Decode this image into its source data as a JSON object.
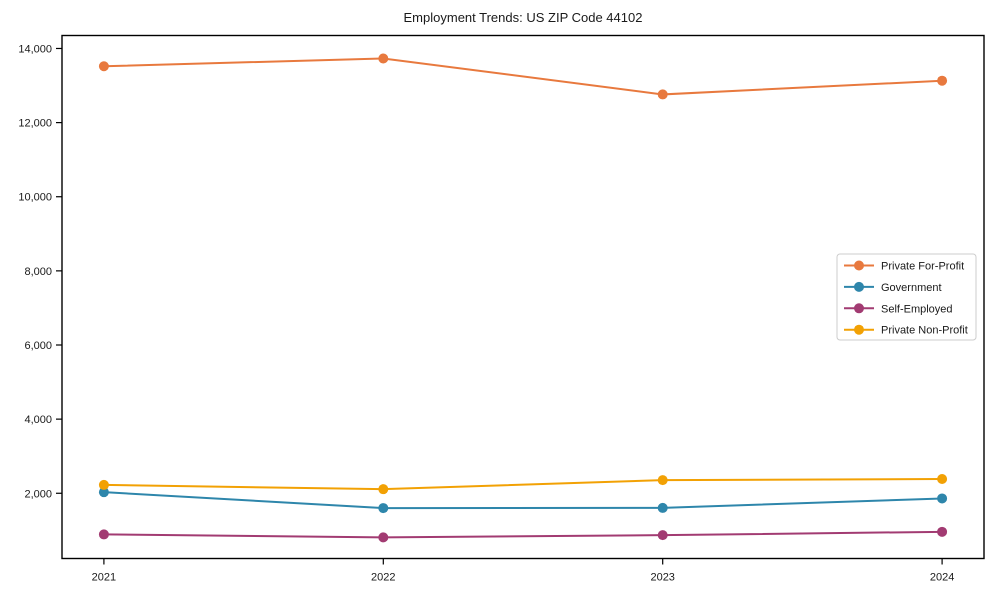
{
  "page": {
    "background": "#ffffff",
    "text_color": "#1a1a1a"
  },
  "chart_data": {
    "type": "line",
    "title": "Employment Trends: US ZIP Code 44102",
    "xlabel": "",
    "ylabel": "",
    "categories": [
      "2021",
      "2022",
      "2023",
      "2024"
    ],
    "series": [
      {
        "name": "Private For-Profit",
        "color": "#E8793E",
        "values": [
          13520,
          13730,
          12760,
          13130
        ]
      },
      {
        "name": "Government",
        "color": "#2E86AB",
        "values": [
          2030,
          1600,
          1605,
          1860
        ]
      },
      {
        "name": "Self-Employed",
        "color": "#A23B72",
        "values": [
          890,
          810,
          870,
          960
        ]
      },
      {
        "name": "Private Non-Profit",
        "color": "#F2A104",
        "values": [
          2225,
          2110,
          2355,
          2385
        ]
      }
    ],
    "y_ticks": [
      {
        "value": 2000,
        "label": "2,000"
      },
      {
        "value": 4000,
        "label": "4,000"
      },
      {
        "value": 6000,
        "label": "6,000"
      },
      {
        "value": 8000,
        "label": "8,000"
      },
      {
        "value": 10000,
        "label": "10,000"
      },
      {
        "value": 12000,
        "label": "12,000"
      },
      {
        "value": 14000,
        "label": "14,000"
      }
    ],
    "ylim": [
      240,
      14350
    ],
    "grid": false,
    "marker": "circle",
    "legend_position": "right",
    "legend_border_color": "#cccccc",
    "frame_color": "#000000"
  }
}
